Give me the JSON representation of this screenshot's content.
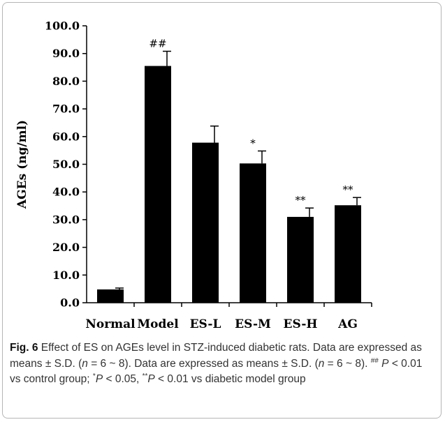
{
  "chart_data": {
    "type": "bar",
    "categories": [
      "Normal",
      "Model",
      "ES-L",
      "ES-M",
      "ES-H",
      "AG"
    ],
    "values": [
      4.8,
      85.5,
      57.8,
      50.3,
      31.0,
      35.2
    ],
    "errors": [
      0.5,
      5.3,
      6.0,
      4.5,
      3.2,
      2.8
    ],
    "annotations": [
      "",
      "##",
      "",
      "*",
      "**",
      "**"
    ],
    "ylabel": "AGEs (ng/ml)",
    "xlabel": "",
    "ylim": [
      0,
      100
    ],
    "yticks": [
      "0.0",
      "10.0",
      "20.0",
      "30.0",
      "40.0",
      "50.0",
      "60.0",
      "70.0",
      "80.0",
      "90.0",
      "100.0"
    ],
    "bar_color": "#000000",
    "grid": false,
    "legend": "none"
  },
  "caption": {
    "fig_label": "Fig. 6",
    "text_1": " Effect of ES on AGEs level in STZ-induced diabetic rats. Data are expressed as means ± S.D. (",
    "n_symbol": "n",
    "text_2": " = 6 ~ 8). Data are expressed as means ± S.D. (",
    "n_symbol_2": "n",
    "text_3": " = 6 ~ 8). ",
    "sup_1": "##",
    "p_1": "P",
    "text_4": " < 0.01 vs control group; ",
    "sup_2": "*",
    "p_2": "P",
    "text_5": " < 0.05, ",
    "sup_3": "**",
    "p_3": "P",
    "text_6": " < 0.01 vs diabetic model group"
  }
}
